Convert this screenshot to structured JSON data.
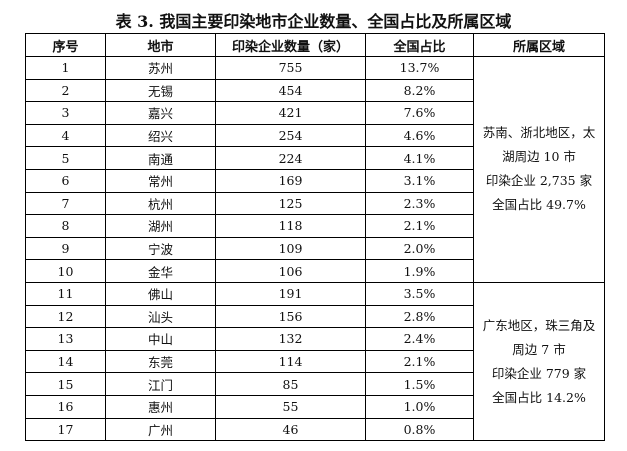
{
  "title": "表 3. 我国主要印染地市企业数量、全国占比及所属区域",
  "headers": [
    "序号",
    "地市",
    "印染企业数量（家）",
    "全国占比",
    "所属区域"
  ],
  "rows": [
    [
      "1",
      "苏州",
      "755",
      "13.7%"
    ],
    [
      "2",
      "无锡",
      "454",
      "8.2%"
    ],
    [
      "3",
      "嘉兴",
      "421",
      "7.6%"
    ],
    [
      "4",
      "绍兴",
      "254",
      "4.6%"
    ],
    [
      "5",
      "南通",
      "224",
      "4.1%"
    ],
    [
      "6",
      "常州",
      "169",
      "3.1%"
    ],
    [
      "7",
      "杭州",
      "125",
      "2.3%"
    ],
    [
      "8",
      "湖州",
      "118",
      "2.1%"
    ],
    [
      "9",
      "宁波",
      "109",
      "2.0%"
    ],
    [
      "10",
      "金华",
      "106",
      "1.9%"
    ],
    [
      "11",
      "佛山",
      "191",
      "3.5%"
    ],
    [
      "12",
      "汕头",
      "156",
      "2.8%"
    ],
    [
      "13",
      "中山",
      "132",
      "2.4%"
    ],
    [
      "14",
      "东莞",
      "114",
      "2.1%"
    ],
    [
      "15",
      "江门",
      "85",
      "1.5%"
    ],
    [
      "16",
      "惠州",
      "55",
      "1.0%"
    ],
    [
      "17",
      "广州",
      "46",
      "0.8%"
    ]
  ],
  "regions": [
    {
      "lines": [
        "苏南、浙北地区，太",
        "湖周边 10 市",
        "印染企业 2,735 家",
        "全国占比 49.7%"
      ],
      "span": 10
    },
    {
      "lines": [
        "广东地区，珠三角及",
        "周边 7 市",
        "印染企业 779 家",
        "全国占比 14.2%"
      ],
      "span": 7
    }
  ]
}
